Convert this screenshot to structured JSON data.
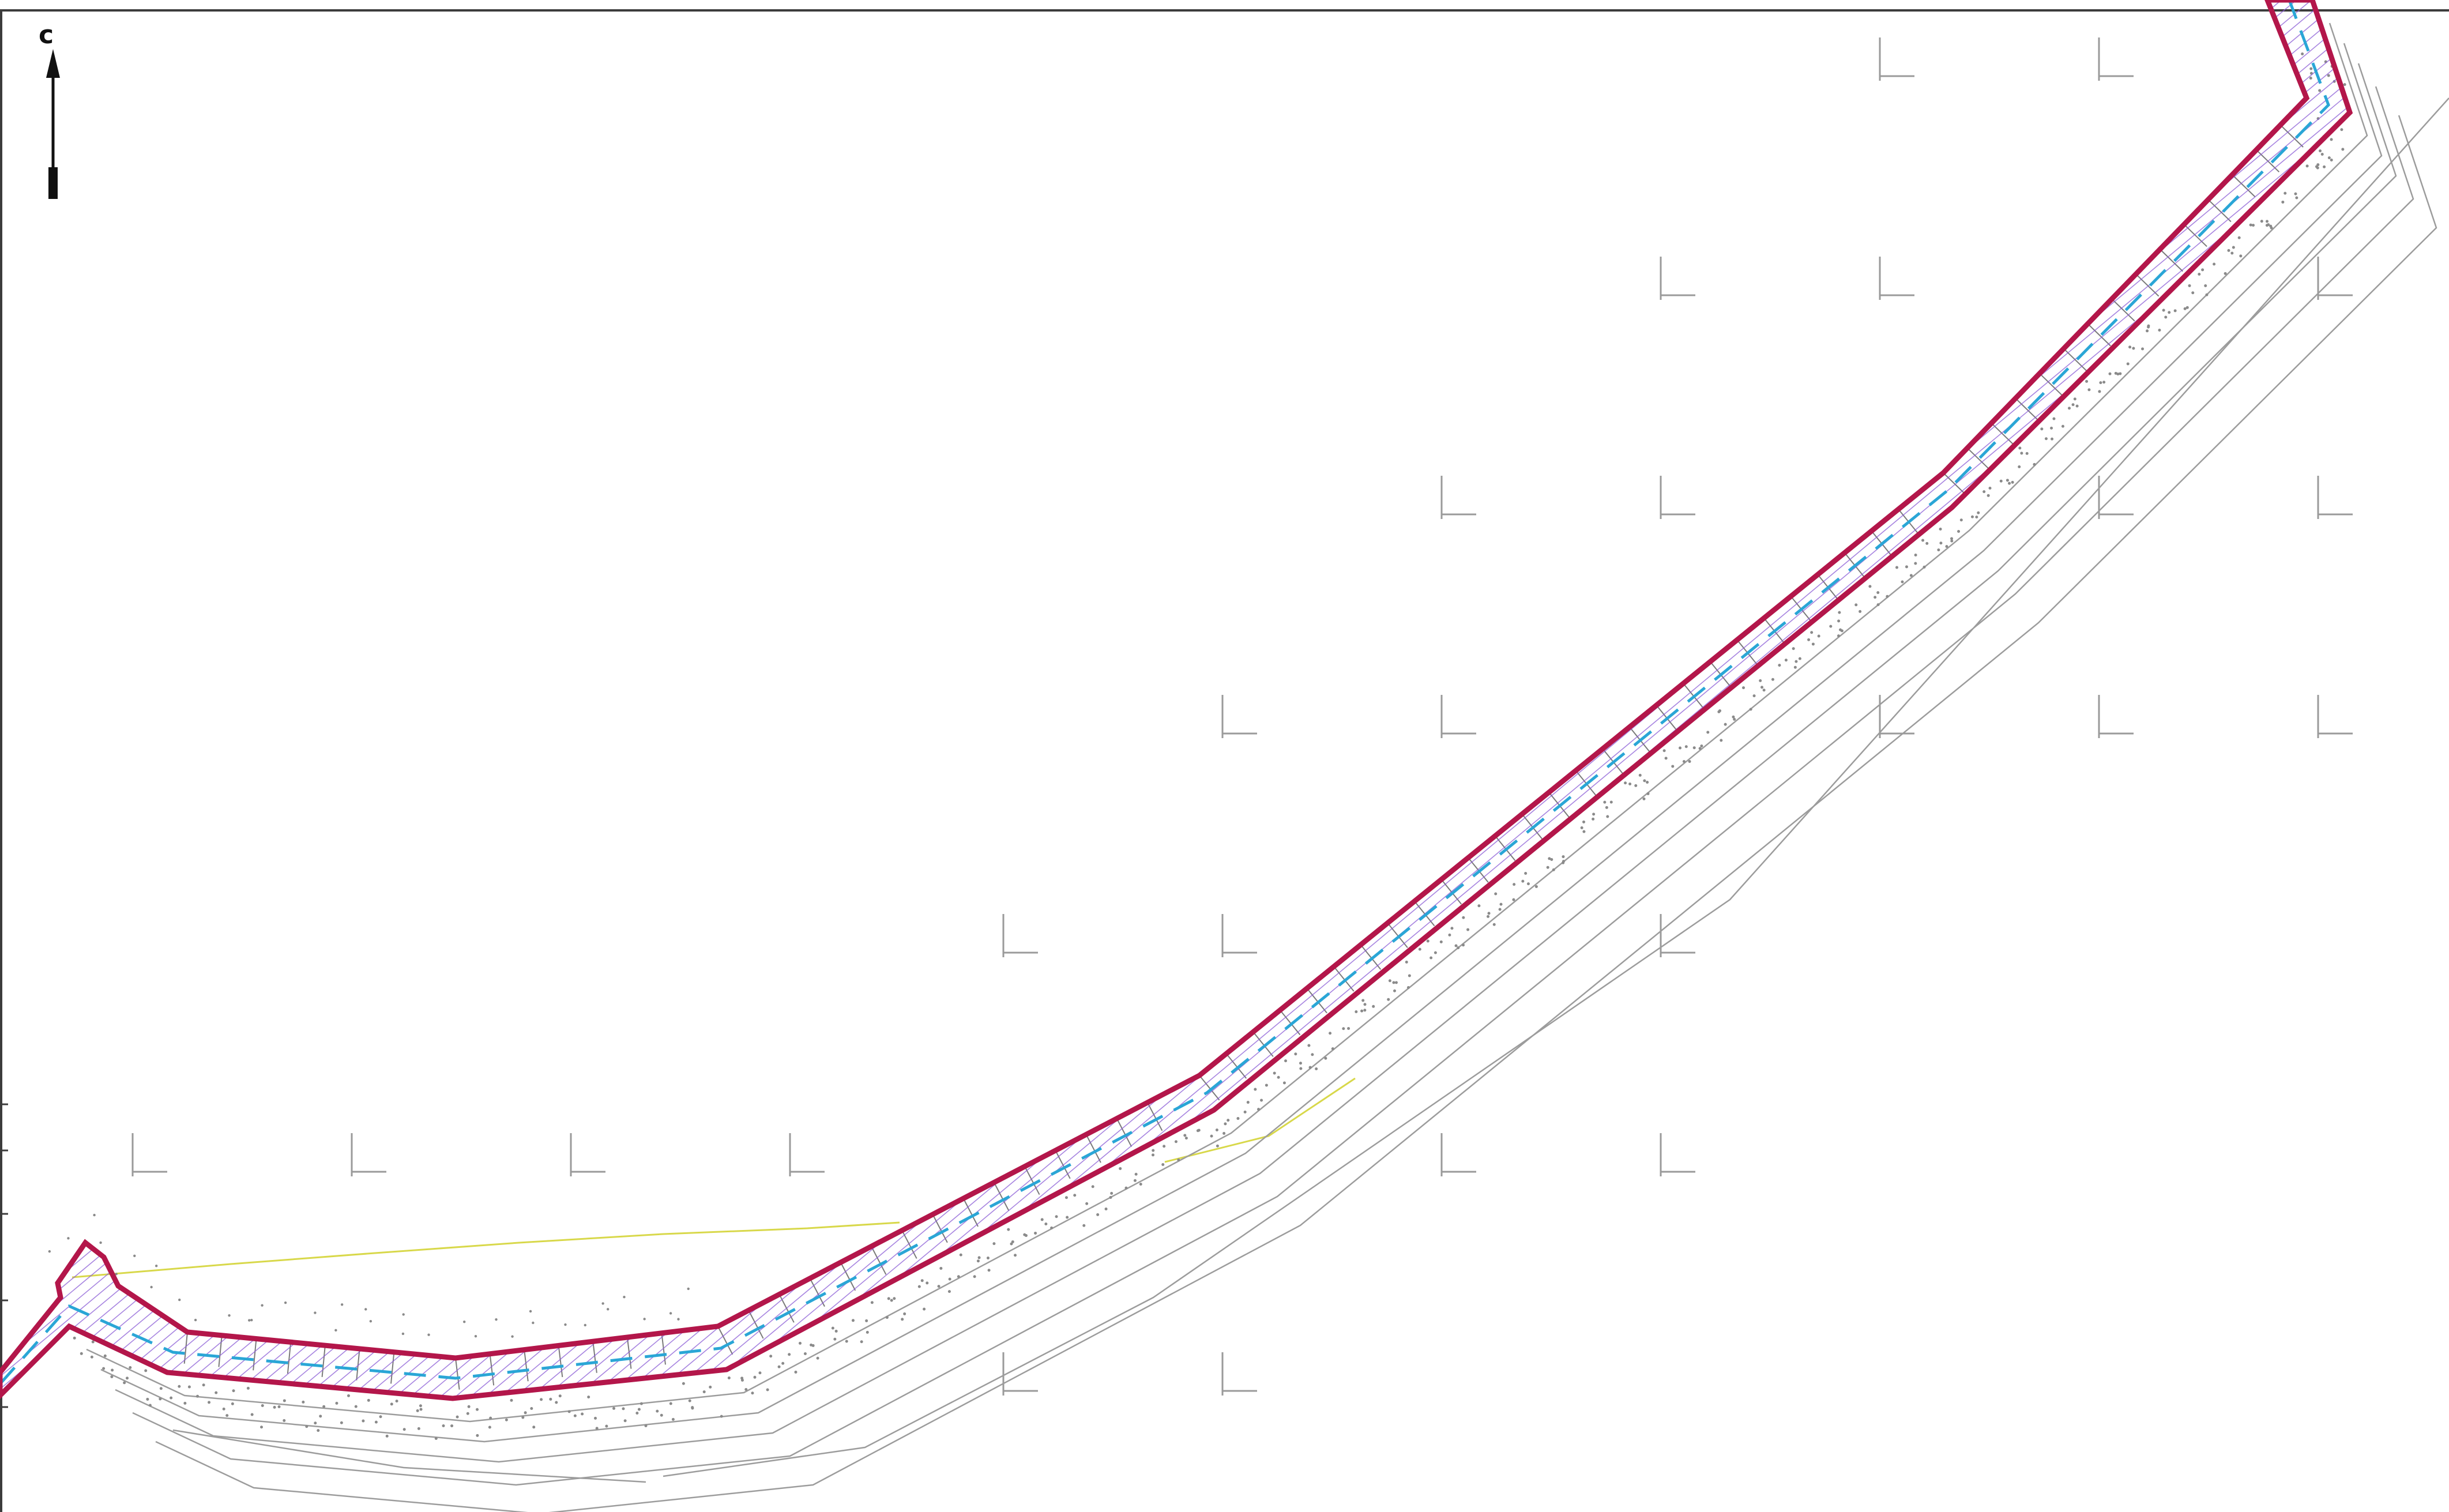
{
  "north_arrow": {
    "label": "с"
  },
  "colors": {
    "boundary": "#b3164a",
    "centerline": "#2aa6d6",
    "hatch": "#8a5bd6",
    "grid": "#9a9a9a",
    "background": "#ffffff"
  },
  "icons": {
    "north_arrow": "north-arrow-icon",
    "grid_cross": "coordinate-grid-cross"
  }
}
